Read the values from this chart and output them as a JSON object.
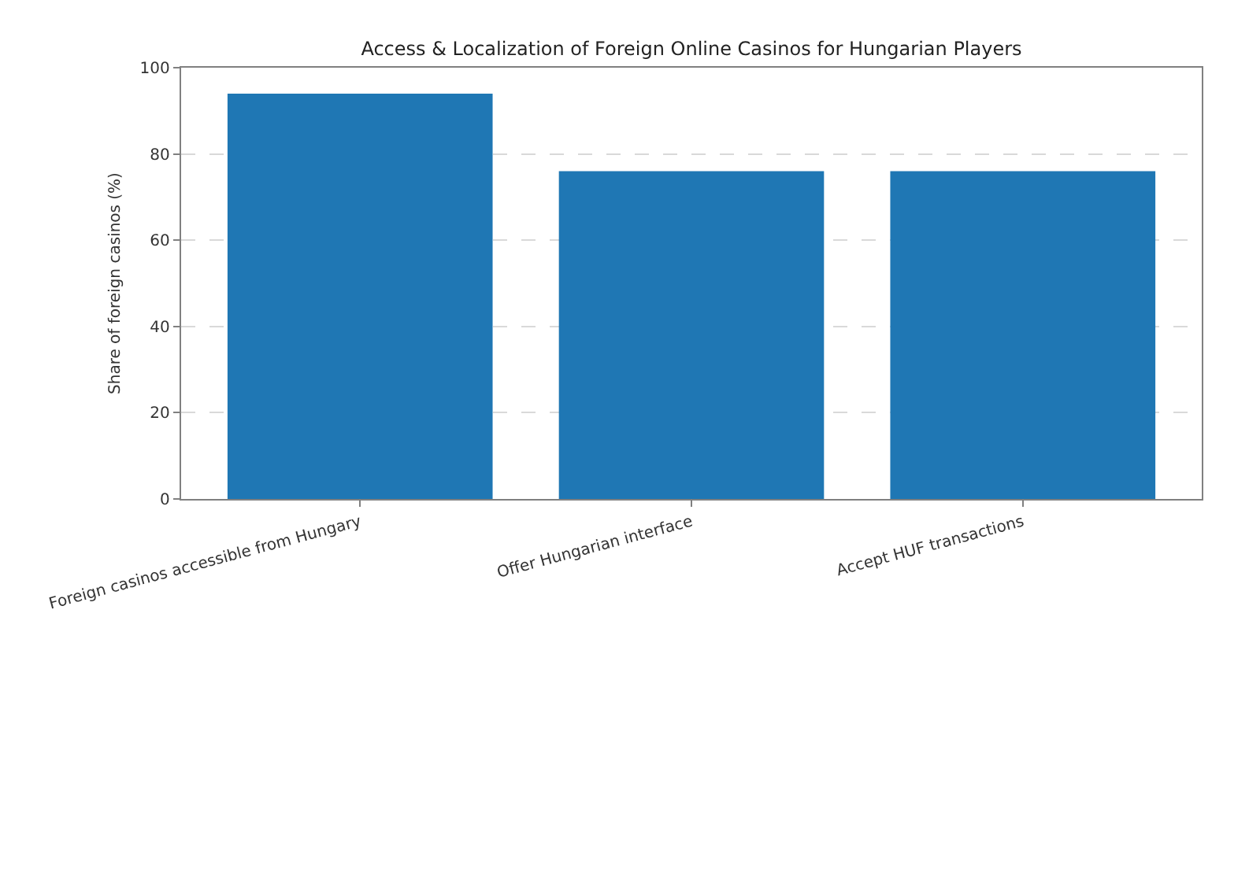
{
  "chart_data": {
    "type": "bar",
    "title": "Access & Localization of Foreign Online Casinos for Hungarian Players",
    "ylabel": "Share of foreign casinos (%)",
    "categories": [
      "Foreign casinos accessible from Hungary",
      "Offer Hungarian interface",
      "Accept HUF transactions"
    ],
    "values": [
      94,
      76,
      76
    ],
    "color": "#1f77b4",
    "ylim": [
      0,
      100
    ],
    "yticks": [
      0,
      20,
      40,
      60,
      80,
      100
    ],
    "grid": "y"
  }
}
